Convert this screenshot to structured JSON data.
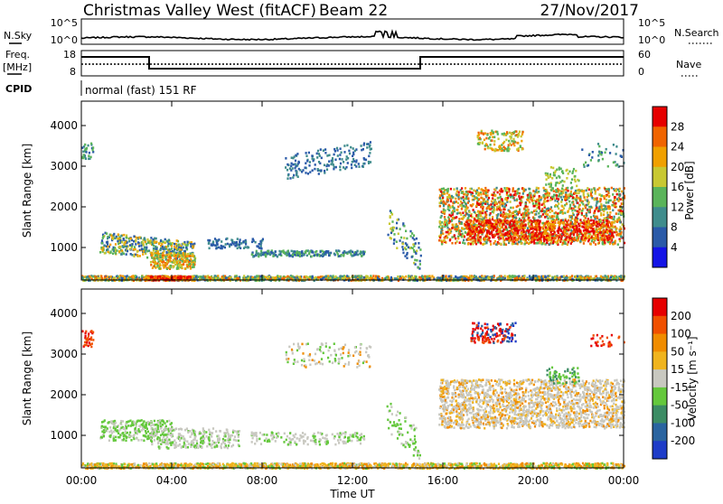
{
  "header": {
    "title": "Christmas Valley West (fitACF)",
    "beam": "Beam 22",
    "date": "27/Nov/2017"
  },
  "status_panels": {
    "nsky_label": "N.Sky",
    "nsearch_label": "N.Search",
    "freq_label_1": "Freq.",
    "freq_label_2": "[MHz]",
    "nave_label": "Nave",
    "cpid_label": "CPID",
    "cpid_text": "normal (fast) 151 RF",
    "noise_ticks": [
      "10^5",
      "10^0"
    ],
    "freq_ticks": [
      "18",
      "8"
    ],
    "nave_ticks": [
      "60",
      "0"
    ]
  },
  "chart_data": [
    {
      "type": "heatmap",
      "title": "Power",
      "xlabel": "",
      "ylabel": "Slant Range [km]",
      "x_ticks": [
        "00:00",
        "04:00",
        "08:00",
        "12:00",
        "16:00",
        "20:00",
        "00:00"
      ],
      "y_ticks": [
        1000,
        2000,
        3000,
        4000
      ],
      "ylim": [
        200,
        4600
      ],
      "colorbar_label": "Power [dB]",
      "colorbar_ticks": [
        4,
        8,
        12,
        16,
        20,
        24,
        28
      ],
      "colors": [
        "#1414e6",
        "#2a5aa8",
        "#3f8c8c",
        "#5ab45a",
        "#c8c832",
        "#f0a000",
        "#f06400",
        "#e60000"
      ]
    },
    {
      "type": "heatmap",
      "title": "Velocity",
      "xlabel": "Time UT",
      "ylabel": "Slant Range [km]",
      "x_ticks": [
        "00:00",
        "04:00",
        "08:00",
        "12:00",
        "16:00",
        "20:00",
        "00:00"
      ],
      "y_ticks": [
        1000,
        2000,
        3000,
        4000
      ],
      "ylim": [
        200,
        4600
      ],
      "colorbar_label": "Velocity [m s⁻¹]",
      "colorbar_ticks": [
        200,
        100,
        50,
        15,
        -15,
        -50,
        -100,
        -200
      ],
      "colors": [
        "#1e3cc8",
        "#2a64a0",
        "#3c8c64",
        "#64c83c",
        "#c8c8c0",
        "#f0b41e",
        "#f08c00",
        "#f05000",
        "#e60000"
      ]
    }
  ]
}
